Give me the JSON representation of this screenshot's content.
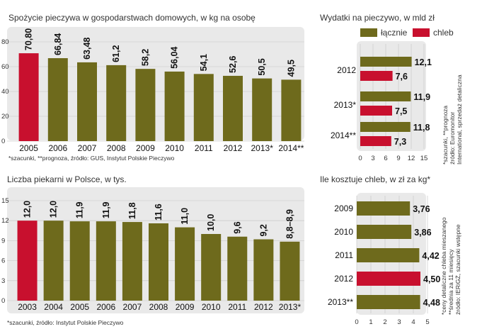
{
  "colors": {
    "olive": "#6e6a1c",
    "red": "#c8102e",
    "panel": "#e9e9e9",
    "grid": "#cfcfcf"
  },
  "chart_data": [
    {
      "type": "bar",
      "title": "Spożycie pieczywa w gospodarstwach domowych, w kg na osobę",
      "categories": [
        "2005",
        "2006",
        "2007",
        "2008",
        "2009",
        "2010",
        "2011",
        "2012",
        "2013*",
        "2014**"
      ],
      "values": [
        70.8,
        66.84,
        63.48,
        61.2,
        58.2,
        56.04,
        54.1,
        52.6,
        50.5,
        49.5
      ],
      "value_labels": [
        "70,80",
        "66,84",
        "63,48",
        "61,2",
        "58,2",
        "56,04",
        "54,1",
        "52,6",
        "50,5",
        "49,5"
      ],
      "highlight_index": 0,
      "ylim": [
        0,
        80
      ],
      "yticks": [
        0,
        20,
        40,
        60,
        80
      ],
      "grid": true,
      "note": "*szacunki, **prognoza, źródło: GUS, Instytut Polskie Pieczywo"
    },
    {
      "type": "bar",
      "orientation": "horizontal",
      "title": "Wydatki na pieczywo, w mld zł",
      "categories": [
        "2012",
        "2013*",
        "2014**"
      ],
      "series": [
        {
          "name": "łącznie",
          "color": "#6e6a1c",
          "values": [
            12.1,
            11.9,
            11.8
          ],
          "value_labels": [
            "12,1",
            "11,9",
            "11,8"
          ]
        },
        {
          "name": "chleb",
          "color": "#c8102e",
          "values": [
            7.6,
            7.5,
            7.3
          ],
          "value_labels": [
            "7,6",
            "7,5",
            "7,3"
          ]
        }
      ],
      "xlim": [
        0,
        15
      ],
      "xticks": [
        0,
        3,
        6,
        9,
        12,
        15
      ],
      "legend": "top",
      "note": "*szacunki, **prognoza źródło: Euromonitor International, sprzedaż detaliczna"
    },
    {
      "type": "bar",
      "title": "Liczba piekarni w Polsce, w tys.",
      "categories": [
        "2003",
        "2004",
        "2005",
        "2006",
        "2007",
        "2008",
        "2009",
        "2010",
        "2011",
        "2012",
        "2013*"
      ],
      "values": [
        12.0,
        12.0,
        11.9,
        11.9,
        11.8,
        11.6,
        11.0,
        10.0,
        9.6,
        9.2,
        8.85
      ],
      "value_labels": [
        "12,0",
        "12,0",
        "11,9",
        "11,9",
        "11,8",
        "11,6",
        "11,0",
        "10,0",
        "9,6",
        "9,2",
        "8,8–8,9"
      ],
      "highlight_index": 0,
      "ylim": [
        0,
        15
      ],
      "yticks": [
        0,
        3,
        6,
        9,
        12,
        15
      ],
      "grid": true,
      "note": "*szacunki, źródło: Instytut Polskie Pieczywo"
    },
    {
      "type": "bar",
      "orientation": "horizontal",
      "title": "Ile kosztuje chleb, w zł za kg*",
      "categories": [
        "2009",
        "2010",
        "2011",
        "2012",
        "2013**"
      ],
      "values": [
        3.76,
        3.86,
        4.42,
        4.5,
        4.48
      ],
      "value_labels": [
        "3,76",
        "3,86",
        "4,42",
        "4,50",
        "4,48"
      ],
      "highlight_index": 3,
      "xlim": [
        0,
        5
      ],
      "xticks": [
        0,
        1,
        2,
        3,
        4,
        5
      ],
      "note": "*ceny detaliczne chleba mieszanego **średnia za 11 miesięcy źródło: IERiGŻ, szacunki wstępne"
    }
  ]
}
